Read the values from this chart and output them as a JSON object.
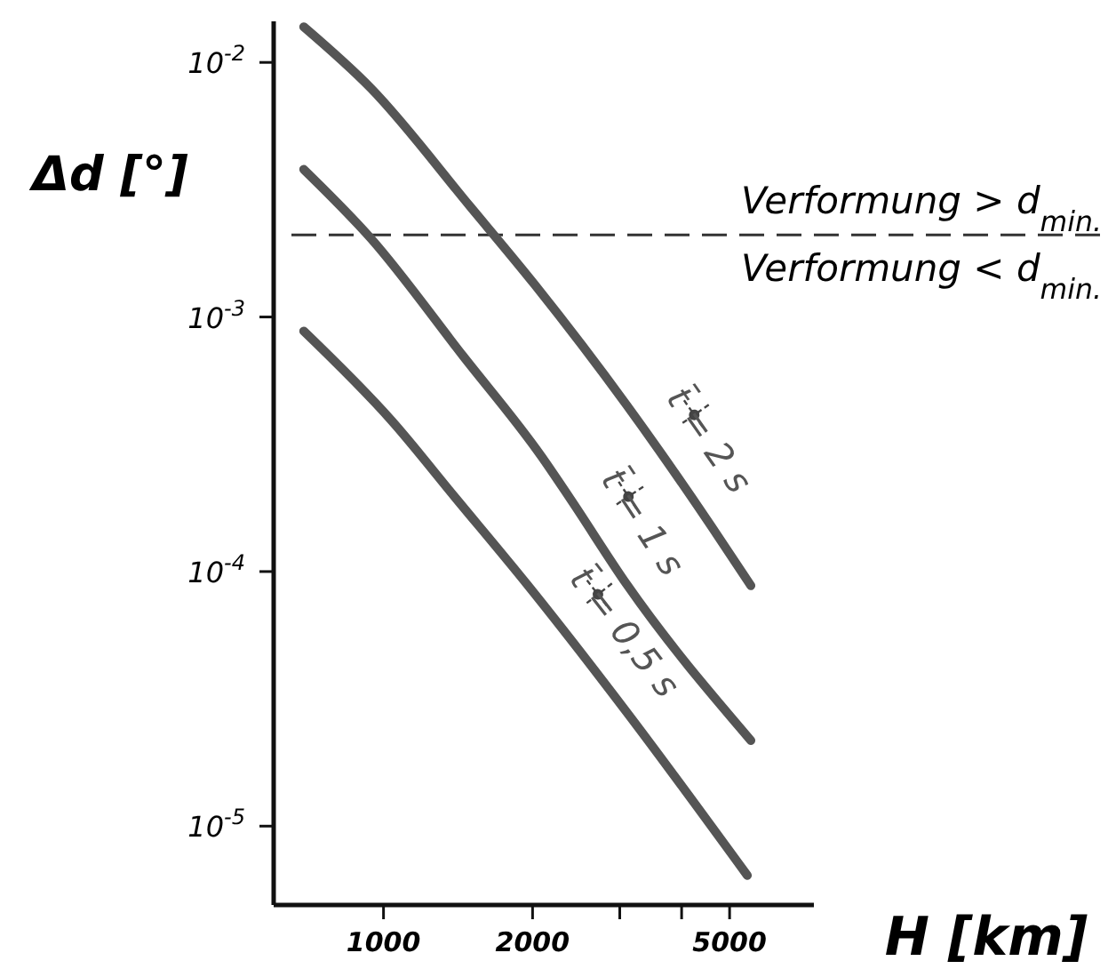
{
  "chart_data": {
    "type": "line",
    "xlabel": "H [km]",
    "ylabel": "Δd [°]",
    "log": "xy",
    "grid": false,
    "marker": "none",
    "line_style": "solid",
    "xlim": [
      600,
      7400
    ],
    "ylim": [
      4.9e-06,
      0.0145
    ],
    "xticks": [
      1000,
      2000,
      {
        "value": 3000,
        "label": null
      },
      {
        "value": 4000,
        "label": null
      },
      5000
    ],
    "yticks": [
      {
        "value": 1e-05,
        "label": "10$^{-5}$"
      },
      {
        "value": 0.0001,
        "label": "10$^{-4}$"
      },
      {
        "value": 0.001,
        "label": "10$^{-3}$"
      },
      {
        "value": 0.01,
        "label": "10$^{-2}$"
      }
    ],
    "ref_lines": [
      {
        "axis": "y",
        "value": 0.0021,
        "line_style": "dashed",
        "color": "#333333",
        "label": "Verformung > d$_{min.}$"
      }
    ],
    "annotations": [
      "Verformung < d$_{min.}$"
    ],
    "series": [
      {
        "name": "t̄ = 2 s",
        "color": "#555555",
        "x": [
          690,
          944,
          1500,
          2020,
          3100,
          4600,
          5520
        ],
        "values": [
          0.0138,
          0.0079,
          0.0027,
          0.00134,
          0.00045,
          0.00015,
          8.8e-05
        ]
      },
      {
        "name": "t̄ = 1 s",
        "color": "#555555",
        "x": [
          690,
          944,
          1450,
          2080,
          2380,
          3100,
          5520
        ],
        "values": [
          0.0038,
          0.00203,
          0.0007,
          0.000285,
          0.000194,
          8.9e-05,
          2.17e-05
        ]
      },
      {
        "name": "t̄ = 0,5 s",
        "color": "#555555",
        "x": [
          690,
          1040,
          1400,
          1950,
          3100,
          5430
        ],
        "values": [
          0.00088,
          0.00039,
          0.000194,
          8.9e-05,
          2.8e-05,
          6.4e-06
        ]
      }
    ]
  }
}
